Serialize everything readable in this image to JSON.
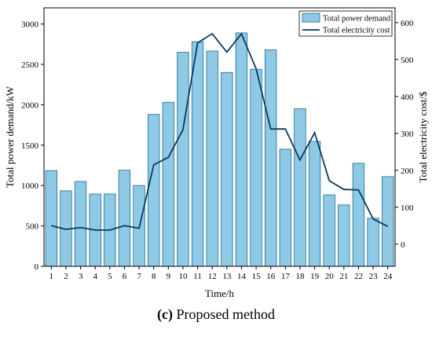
{
  "caption": {
    "label": "(c)",
    "text": "Proposed method"
  },
  "colors": {
    "bar_fill": "#8ecae6",
    "bar_stroke": "#1f6b8c",
    "line": "#0b3a5c",
    "axis": "#000000"
  },
  "chart_data": {
    "type": "bar",
    "x": [
      1,
      2,
      3,
      4,
      5,
      6,
      7,
      8,
      9,
      10,
      11,
      12,
      13,
      14,
      15,
      16,
      17,
      18,
      19,
      20,
      21,
      22,
      23,
      24
    ],
    "xlabel": "Time/h",
    "ylabel": "Total power demand/kW",
    "y2label": "Total electricity cost/$",
    "ylim": [
      0,
      3200
    ],
    "y2lim": [
      -60,
      640
    ],
    "yticks": [
      0,
      500,
      1000,
      1500,
      2000,
      2500,
      3000
    ],
    "y2ticks": [
      0,
      100,
      200,
      300,
      400,
      500,
      600
    ],
    "legend_position": "top-right",
    "grid": false,
    "series": [
      {
        "name": "Total power demand",
        "type": "bar",
        "axis": "left",
        "values": [
          1185,
          935,
          1050,
          895,
          895,
          1190,
          1000,
          1880,
          2030,
          2650,
          2780,
          2665,
          2400,
          2890,
          2440,
          2680,
          1450,
          1950,
          1545,
          885,
          760,
          1275,
          595,
          1110
        ]
      },
      {
        "name": "Total electricity cost",
        "type": "line",
        "axis": "right",
        "values": [
          50,
          40,
          45,
          38,
          38,
          50,
          43,
          215,
          235,
          310,
          545,
          570,
          520,
          570,
          475,
          312,
          312,
          228,
          302,
          172,
          148,
          147,
          68,
          48
        ]
      }
    ]
  }
}
